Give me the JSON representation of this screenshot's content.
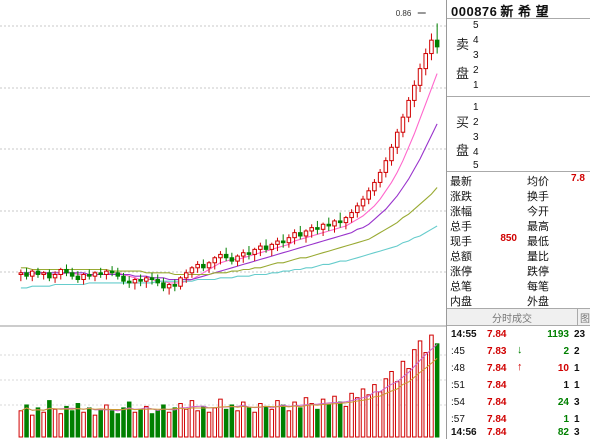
{
  "stock": {
    "code": "000876",
    "name": "新 希 望"
  },
  "price_tag": "0.86",
  "order_book": {
    "sell_label": [
      "卖",
      "盘"
    ],
    "sell_levels": [
      "5",
      "4",
      "3",
      "2",
      "1"
    ],
    "buy_label": [
      "买",
      "盘"
    ],
    "buy_levels": [
      "1",
      "2",
      "3",
      "4",
      "5"
    ]
  },
  "quote_info": [
    {
      "left": "最新",
      "left_value": "",
      "right": "均价",
      "right_value": "7.8"
    },
    {
      "left": "涨跌",
      "left_value": "",
      "right": "换手",
      "right_value": ""
    },
    {
      "left": "涨幅",
      "left_value": "",
      "right": "今开",
      "right_value": ""
    },
    {
      "left": "总手",
      "left_value": "",
      "right": "最高",
      "right_value": ""
    },
    {
      "left": "现手",
      "left_value": "850",
      "right": "最低",
      "right_value": ""
    },
    {
      "left": "总额",
      "left_value": "",
      "right": "量比",
      "right_value": ""
    },
    {
      "left": "涨停",
      "left_value": "",
      "right": "跌停",
      "right_value": ""
    },
    {
      "left": "总笔",
      "left_value": "",
      "right": "每笔",
      "right_value": ""
    },
    {
      "left": "内盘",
      "left_value": "",
      "right": "外盘",
      "right_value": ""
    }
  ],
  "ticks_header": {
    "title": "分时成交",
    "side": "图"
  },
  "ticks": [
    {
      "time": "14:55",
      "price": "7.84",
      "arrow": "",
      "arrow_color": "",
      "volume": "1193",
      "volume_color": "#008000",
      "count": "23",
      "bold_time": true
    },
    {
      "time": ":45",
      "price": "7.83",
      "arrow": "↓",
      "arrow_color": "#008000",
      "volume": "2",
      "volume_color": "#008000",
      "count": "2",
      "bold_time": false
    },
    {
      "time": ":48",
      "price": "7.84",
      "arrow": "↑",
      "arrow_color": "#d00000",
      "volume": "10",
      "volume_color": "#d00000",
      "count": "1",
      "bold_time": false
    },
    {
      "time": ":51",
      "price": "7.84",
      "arrow": "",
      "arrow_color": "",
      "volume": "1",
      "volume_color": "#111111",
      "count": "1",
      "bold_time": false
    },
    {
      "time": ":54",
      "price": "7.84",
      "arrow": "",
      "arrow_color": "",
      "volume": "24",
      "volume_color": "#008000",
      "count": "3",
      "bold_time": false
    },
    {
      "time": ":57",
      "price": "7.84",
      "arrow": "",
      "arrow_color": "",
      "volume": "1",
      "volume_color": "#008000",
      "count": "1",
      "bold_time": false
    },
    {
      "time": "14:56",
      "price": "7.84",
      "arrow": "",
      "arrow_color": "",
      "volume": "82",
      "volume_color": "#008000",
      "count": "3",
      "bold_time": true
    }
  ],
  "colors": {
    "up": "#d00000",
    "down": "#008000",
    "background": "#ffffff"
  },
  "chart_data": {
    "type": "candlestick",
    "series": [
      {
        "type": "candlestick",
        "values": [
          [
            100,
            103,
            96,
            101
          ],
          [
            101,
            104,
            97,
            99
          ],
          [
            99,
            103,
            96,
            102
          ],
          [
            102,
            104,
            98,
            100
          ],
          [
            100,
            102,
            97,
            101
          ],
          [
            101,
            103,
            96,
            98
          ],
          [
            98,
            102,
            95,
            100
          ],
          [
            100,
            104,
            97,
            103
          ],
          [
            103,
            106,
            99,
            101
          ],
          [
            101,
            104,
            97,
            99
          ],
          [
            99,
            102,
            95,
            97
          ],
          [
            97,
            101,
            94,
            100
          ],
          [
            100,
            103,
            97,
            99
          ],
          [
            99,
            102,
            96,
            101
          ],
          [
            101,
            104,
            98,
            100
          ],
          [
            100,
            103,
            97,
            102
          ],
          [
            102,
            105,
            99,
            101
          ],
          [
            101,
            104,
            97,
            99
          ],
          [
            99,
            101,
            94,
            96
          ],
          [
            96,
            99,
            92,
            95
          ],
          [
            95,
            98,
            91,
            97
          ],
          [
            97,
            100,
            93,
            96
          ],
          [
            96,
            99,
            92,
            98
          ],
          [
            98,
            101,
            94,
            97
          ],
          [
            97,
            100,
            93,
            95
          ],
          [
            95,
            98,
            90,
            92
          ],
          [
            92,
            95,
            88,
            94
          ],
          [
            94,
            97,
            90,
            93
          ],
          [
            93,
            99,
            91,
            98
          ],
          [
            98,
            103,
            95,
            101
          ],
          [
            101,
            105,
            98,
            104
          ],
          [
            104,
            108,
            101,
            106
          ],
          [
            106,
            109,
            102,
            104
          ],
          [
            104,
            108,
            101,
            107
          ],
          [
            107,
            111,
            103,
            110
          ],
          [
            110,
            114,
            106,
            112
          ],
          [
            112,
            116,
            108,
            110
          ],
          [
            110,
            113,
            106,
            108
          ],
          [
            108,
            112,
            105,
            111
          ],
          [
            111,
            115,
            107,
            113
          ],
          [
            113,
            117,
            109,
            112
          ],
          [
            112,
            116,
            108,
            115
          ],
          [
            115,
            119,
            111,
            117
          ],
          [
            117,
            121,
            113,
            115
          ],
          [
            115,
            119,
            111,
            118
          ],
          [
            118,
            122,
            114,
            120
          ],
          [
            120,
            124,
            116,
            119
          ],
          [
            119,
            124,
            116,
            122
          ],
          [
            122,
            127,
            118,
            125
          ],
          [
            125,
            129,
            121,
            123
          ],
          [
            123,
            127,
            119,
            126
          ],
          [
            126,
            130,
            122,
            128
          ],
          [
            128,
            132,
            124,
            127
          ],
          [
            127,
            131,
            123,
            130
          ],
          [
            130,
            134,
            126,
            129
          ],
          [
            129,
            133,
            125,
            132
          ],
          [
            132,
            137,
            128,
            131
          ],
          [
            131,
            135,
            127,
            134
          ],
          [
            134,
            139,
            131,
            137
          ],
          [
            137,
            143,
            134,
            141
          ],
          [
            141,
            147,
            138,
            145
          ],
          [
            145,
            152,
            142,
            150
          ],
          [
            150,
            157,
            147,
            155
          ],
          [
            155,
            163,
            152,
            161
          ],
          [
            161,
            170,
            158,
            168
          ],
          [
            168,
            178,
            165,
            176
          ],
          [
            176,
            187,
            172,
            185
          ],
          [
            185,
            196,
            182,
            194
          ],
          [
            194,
            206,
            191,
            204
          ],
          [
            204,
            216,
            200,
            213
          ],
          [
            213,
            226,
            209,
            223
          ],
          [
            223,
            235,
            219,
            232
          ],
          [
            232,
            244,
            228,
            240
          ],
          [
            240,
            250,
            232,
            236
          ]
        ]
      },
      {
        "name": "MA-pink",
        "values": [
          100,
          100,
          100,
          101,
          101,
          100,
          100,
          100,
          101,
          101,
          100,
          100,
          99,
          100,
          100,
          100,
          101,
          101,
          100,
          99,
          98,
          97,
          97,
          97,
          96,
          96,
          95,
          95,
          95,
          96,
          97,
          99,
          101,
          103,
          105,
          107,
          108,
          109,
          109,
          110,
          111,
          112,
          113,
          114,
          115,
          116,
          117,
          118,
          120,
          121,
          122,
          123,
          124,
          125,
          126,
          127,
          128,
          129,
          131,
          133,
          135,
          138,
          141,
          145,
          150,
          155,
          161,
          168,
          176,
          184,
          193,
          202,
          211,
          220
        ]
      },
      {
        "name": "MA-purple",
        "values": [
          101,
          101,
          101,
          101,
          101,
          101,
          101,
          101,
          101,
          101,
          101,
          101,
          100,
          100,
          100,
          100,
          100,
          100,
          100,
          100,
          99,
          99,
          99,
          98,
          98,
          98,
          97,
          97,
          97,
          97,
          97,
          98,
          99,
          100,
          101,
          102,
          103,
          104,
          105,
          106,
          107,
          108,
          109,
          110,
          111,
          112,
          113,
          114,
          115,
          116,
          117,
          118,
          119,
          120,
          121,
          122,
          123,
          124,
          125,
          127,
          128,
          130,
          133,
          136,
          139,
          143,
          147,
          152,
          157,
          163,
          169,
          176,
          183,
          190
        ]
      },
      {
        "name": "MA-yellowgreen",
        "values": [
          104,
          104,
          103,
          103,
          103,
          103,
          103,
          103,
          103,
          103,
          103,
          103,
          103,
          103,
          103,
          103,
          102,
          102,
          102,
          102,
          102,
          102,
          101,
          101,
          101,
          101,
          101,
          100,
          100,
          100,
          100,
          100,
          100,
          100,
          101,
          101,
          101,
          102,
          102,
          103,
          103,
          104,
          104,
          105,
          106,
          107,
          107,
          108,
          109,
          110,
          110,
          111,
          112,
          113,
          114,
          115,
          116,
          117,
          118,
          119,
          120,
          121,
          123,
          125,
          127,
          129,
          131,
          134,
          136,
          139,
          142,
          145,
          148,
          152
        ]
      },
      {
        "name": "MA-cyan",
        "values": [
          92,
          92,
          93,
          93,
          93,
          93,
          94,
          94,
          94,
          94,
          94,
          94,
          95,
          95,
          95,
          95,
          95,
          95,
          95,
          95,
          95,
          95,
          95,
          95,
          96,
          96,
          96,
          96,
          96,
          96,
          96,
          97,
          97,
          97,
          97,
          98,
          98,
          98,
          99,
          99,
          99,
          100,
          100,
          100,
          101,
          101,
          102,
          102,
          103,
          103,
          104,
          104,
          105,
          106,
          106,
          107,
          108,
          108,
          109,
          110,
          111,
          112,
          113,
          114,
          115,
          116,
          117,
          119,
          120,
          122,
          123,
          125,
          127,
          129
        ]
      }
    ],
    "volume": [
      18,
      22,
      15,
      20,
      17,
      25,
      19,
      16,
      21,
      18,
      23,
      17,
      20,
      15,
      19,
      22,
      18,
      16,
      20,
      24,
      17,
      19,
      21,
      16,
      18,
      22,
      17,
      20,
      23,
      19,
      25,
      18,
      21,
      17,
      20,
      26,
      19,
      22,
      18,
      24,
      20,
      17,
      23,
      21,
      19,
      25,
      22,
      18,
      24,
      20,
      27,
      23,
      19,
      26,
      22,
      28,
      24,
      21,
      30,
      27,
      33,
      29,
      36,
      31,
      40,
      45,
      38,
      52,
      47,
      60,
      66,
      58,
      70,
      64
    ],
    "volume_up": [
      true,
      false,
      true,
      false,
      true,
      false,
      true,
      true,
      false,
      false,
      false,
      true,
      false,
      true,
      false,
      true,
      false,
      false,
      false,
      false,
      true,
      false,
      true,
      false,
      false,
      false,
      true,
      false,
      true,
      true,
      true,
      true,
      false,
      true,
      true,
      true,
      false,
      false,
      true,
      true,
      false,
      true,
      true,
      false,
      true,
      true,
      false,
      true,
      true,
      false,
      true,
      true,
      false,
      true,
      false,
      true,
      false,
      true,
      true,
      true,
      true,
      true,
      true,
      true,
      true,
      true,
      true,
      true,
      true,
      true,
      true,
      true,
      true,
      false
    ]
  }
}
